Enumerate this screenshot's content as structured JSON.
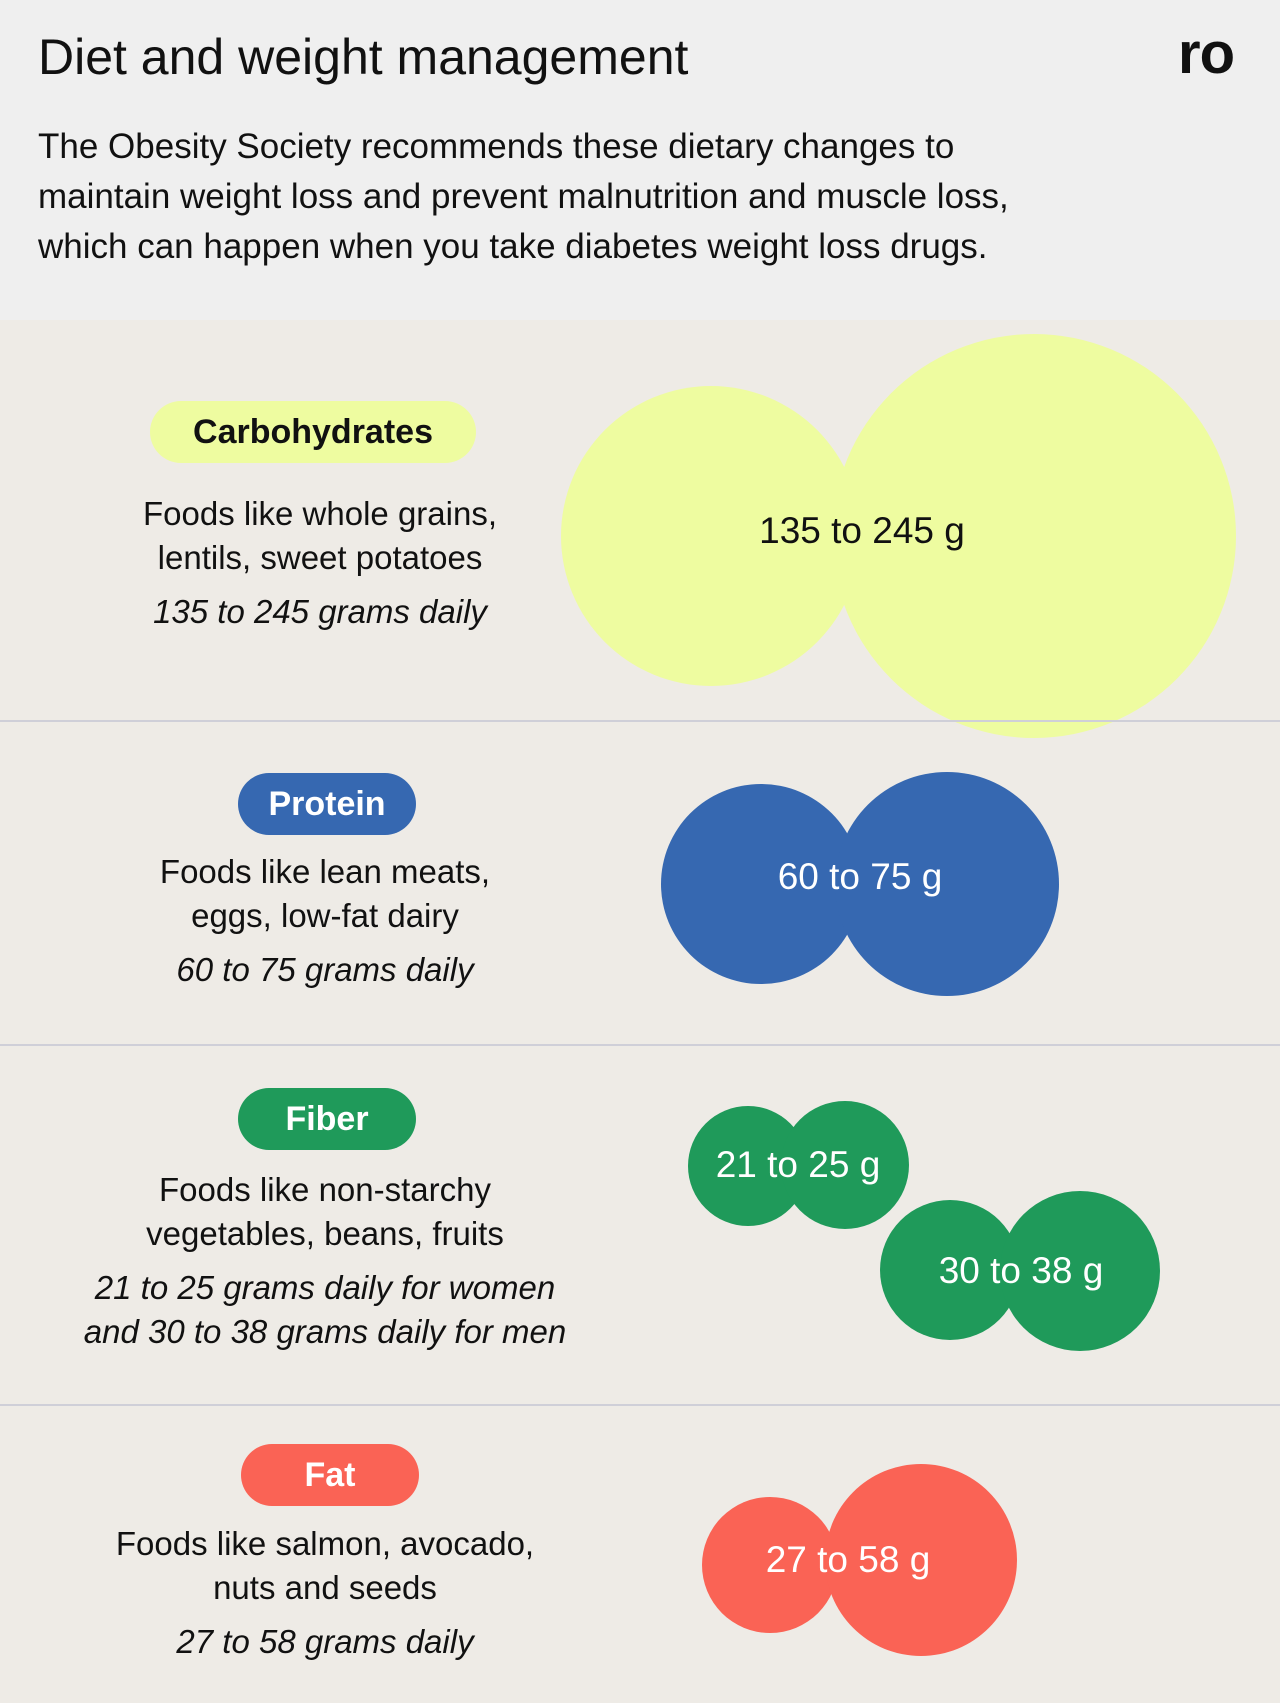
{
  "header": {
    "title": "Diet and weight management",
    "logo": "ro",
    "intro_lines": [
      "The Obesity Society recommends these dietary changes to",
      "maintain weight loss and prevent malnutrition and muscle loss,",
      "which can happen when you take diabetes weight loss drugs."
    ]
  },
  "sections": [
    {
      "label": "Carbohydrates",
      "color": "#eefca0",
      "text_color": "#111111",
      "desc_lines": [
        "Foods like whole grains,",
        "lentils, sweet potatoes"
      ],
      "amount_lines": [
        "135 to 245 grams daily"
      ],
      "bubbles": [
        "135 to 245 g"
      ]
    },
    {
      "label": "Protein",
      "color": "#3668b1",
      "text_color": "#ffffff",
      "desc_lines": [
        "Foods like lean meats,",
        "eggs, low-fat dairy"
      ],
      "amount_lines": [
        "60 to 75 grams daily"
      ],
      "bubbles": [
        "60 to 75 g"
      ]
    },
    {
      "label": "Fiber",
      "color": "#1f9a5a",
      "text_color": "#ffffff",
      "desc_lines": [
        "Foods like non-starchy",
        "vegetables, beans, fruits"
      ],
      "amount_lines": [
        "21 to 25 grams daily for women",
        "and 30 to 38 grams daily for men"
      ],
      "bubbles": [
        "21 to 25 g",
        "30 to 38 g"
      ]
    },
    {
      "label": "Fat",
      "color": "#fa6355",
      "text_color": "#ffffff",
      "desc_lines": [
        "Foods like salmon, avocado,",
        "nuts and seeds"
      ],
      "amount_lines": [
        "27 to 58 grams daily"
      ],
      "bubbles": [
        "27 to 58 g"
      ]
    }
  ]
}
